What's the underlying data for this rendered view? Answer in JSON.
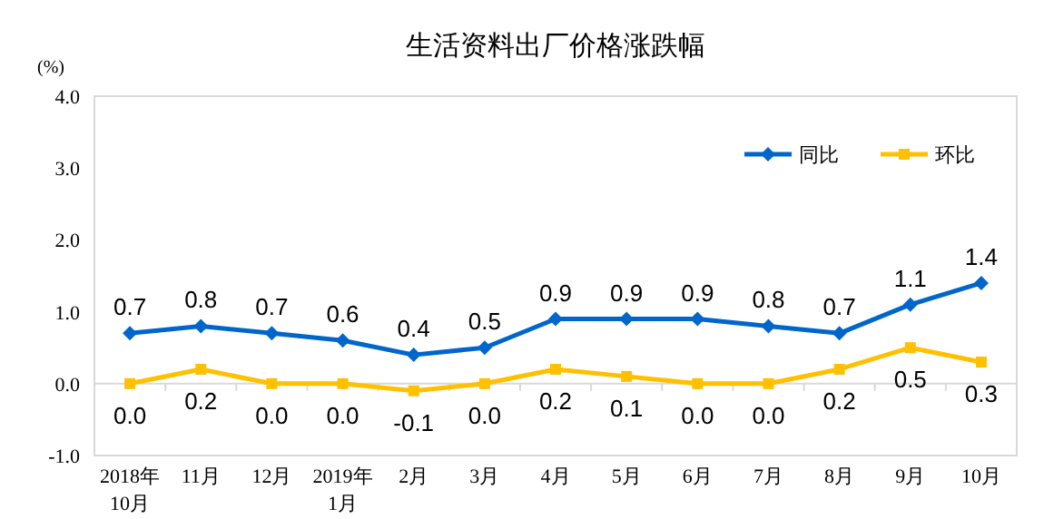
{
  "chart_data": {
    "type": "line",
    "title": "生活资料出厂价格涨跌幅",
    "ylabel": "(%)",
    "categories": [
      "2018年\n10月",
      "11月",
      "12月",
      "2019年\n1月",
      "2月",
      "3月",
      "4月",
      "5月",
      "6月",
      "7月",
      "8月",
      "9月",
      "10月"
    ],
    "series": [
      {
        "name": "同比",
        "color": "#0066cc",
        "marker": "diamond",
        "values": [
          0.7,
          0.8,
          0.7,
          0.6,
          0.4,
          0.5,
          0.9,
          0.9,
          0.9,
          0.8,
          0.7,
          1.1,
          1.4
        ],
        "value_labels": [
          "0.7",
          "0.8",
          "0.7",
          "0.6",
          "0.4",
          "0.5",
          "0.9",
          "0.9",
          "0.9",
          "0.8",
          "0.7",
          "1.1",
          "1.4"
        ]
      },
      {
        "name": "环比",
        "color": "#ffc000",
        "marker": "square",
        "values": [
          0.0,
          0.2,
          0.0,
          0.0,
          -0.1,
          0.0,
          0.2,
          0.1,
          0.0,
          0.0,
          0.2,
          0.5,
          0.3
        ],
        "value_labels": [
          "0.0",
          "0.2",
          "0.0",
          "0.0",
          "-0.1",
          "0.0",
          "0.2",
          "0.1",
          "0.0",
          "0.0",
          "0.2",
          "0.5",
          "0.3"
        ]
      }
    ],
    "ylim": [
      -1,
      4
    ],
    "yticks": [
      {
        "value": -1,
        "label": "-1.0"
      },
      {
        "value": 0,
        "label": "0.0"
      },
      {
        "value": 1,
        "label": "1.0"
      },
      {
        "value": 2,
        "label": "2.0"
      },
      {
        "value": 3,
        "label": "3.0"
      },
      {
        "value": 4,
        "label": "4.0"
      }
    ],
    "legend": "top right"
  }
}
